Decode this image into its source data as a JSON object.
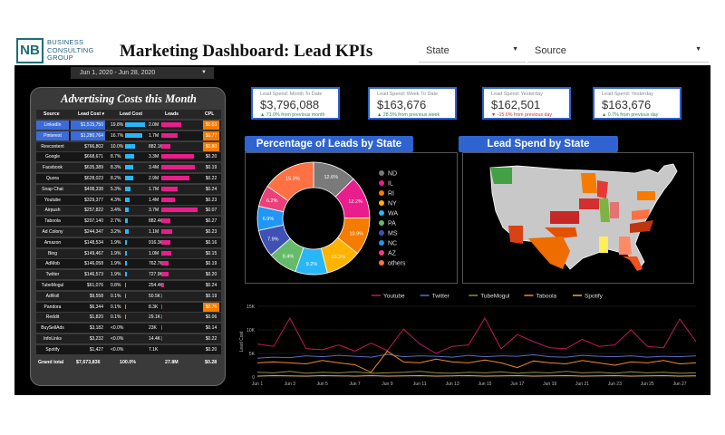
{
  "header": {
    "logo": "NB",
    "company": [
      "BUSINESS",
      "CONSULTING",
      "GROUP"
    ],
    "title": "Marketing Dashboard: Lead KPIs",
    "state_filter": "State",
    "source_filter": "Source",
    "date_range": "Jun 1, 2020 - Jun 28, 2020"
  },
  "ad_costs": {
    "title": "Advertising Costs this Month",
    "columns": [
      "Source",
      "Lead Cost",
      "Lead Cost",
      "Leads",
      "CPL"
    ],
    "rows": [
      {
        "source": "LinkedIn",
        "cost": "$1,515,750",
        "pct": "19.8%",
        "pct_value": 19.8,
        "leads": "2.0M",
        "leads_value": 2.0,
        "cpl": "$0.53",
        "cpl_color": "#f57c00",
        "highlight": true
      },
      {
        "source": "Pinterest",
        "cost": "$1,280,764",
        "pct": "16.7%",
        "pct_value": 16.7,
        "leads": "1.7M",
        "leads_value": 1.7,
        "cpl": "$0.77",
        "cpl_color": "#f57c00",
        "highlight": true
      },
      {
        "source": "Revcontent",
        "cost": "$766,802",
        "pct": "10.0%",
        "pct_value": 10.0,
        "leads": "882.1K",
        "leads_value": 0.882,
        "cpl": "$0.80",
        "cpl_color": "#f57c00",
        "highlight": false
      },
      {
        "source": "Google",
        "cost": "$668,671",
        "pct": "8.7%",
        "pct_value": 8.7,
        "leads": "3.3M",
        "leads_value": 3.3,
        "cpl": "$0.20",
        "cpl_color": "",
        "highlight": false
      },
      {
        "source": "Facebook",
        "cost": "$635,389",
        "pct": "8.3%",
        "pct_value": 8.3,
        "leads": "3.4M",
        "leads_value": 3.4,
        "cpl": "$0.19",
        "cpl_color": "",
        "highlight": false
      },
      {
        "source": "Quora",
        "cost": "$628,023",
        "pct": "8.2%",
        "pct_value": 8.2,
        "leads": "2.9M",
        "leads_value": 2.9,
        "cpl": "$0.22",
        "cpl_color": "",
        "highlight": false
      },
      {
        "source": "Snap Chat",
        "cost": "$408,338",
        "pct": "5.3%",
        "pct_value": 5.3,
        "leads": "1.7M",
        "leads_value": 1.7,
        "cpl": "$0.24",
        "cpl_color": "",
        "highlight": false
      },
      {
        "source": "Youtube",
        "cost": "$329,377",
        "pct": "4.3%",
        "pct_value": 4.3,
        "leads": "1.4M",
        "leads_value": 1.4,
        "cpl": "$0.23",
        "cpl_color": "",
        "highlight": false
      },
      {
        "source": "Airpush",
        "cost": "$257,822",
        "pct": "3.4%",
        "pct_value": 3.4,
        "leads": "3.7M",
        "leads_value": 3.7,
        "cpl": "$0.07",
        "cpl_color": "",
        "highlight": false
      },
      {
        "source": "Taboola",
        "cost": "$207,140",
        "pct": "2.7%",
        "pct_value": 2.7,
        "leads": "882.4K",
        "leads_value": 0.882,
        "cpl": "$0.27",
        "cpl_color": "",
        "highlight": false
      },
      {
        "source": "Ad Colony",
        "cost": "$244,347",
        "pct": "3.2%",
        "pct_value": 3.2,
        "leads": "1.1M",
        "leads_value": 1.1,
        "cpl": "$0.23",
        "cpl_color": "",
        "highlight": false
      },
      {
        "source": "Amazon",
        "cost": "$148,534",
        "pct": "1.9%",
        "pct_value": 1.9,
        "leads": "916.3K",
        "leads_value": 0.916,
        "cpl": "$0.16",
        "cpl_color": "",
        "highlight": false
      },
      {
        "source": "Bing",
        "cost": "$149,467",
        "pct": "1.9%",
        "pct_value": 1.9,
        "leads": "1.0M",
        "leads_value": 1.0,
        "cpl": "$0.15",
        "cpl_color": "",
        "highlight": false
      },
      {
        "source": "AdMob",
        "cost": "$146,058",
        "pct": "1.9%",
        "pct_value": 1.9,
        "leads": "762.7K",
        "leads_value": 0.763,
        "cpl": "$0.19",
        "cpl_color": "",
        "highlight": false
      },
      {
        "source": "Twitter",
        "cost": "$146,573",
        "pct": "1.9%",
        "pct_value": 1.9,
        "leads": "727.9K",
        "leads_value": 0.728,
        "cpl": "$0.20",
        "cpl_color": "",
        "highlight": false
      },
      {
        "source": "TubeMogul",
        "cost": "$61,076",
        "pct": "0.8%",
        "pct_value": 0.8,
        "leads": "254.4K",
        "leads_value": 0.254,
        "cpl": "$0.24",
        "cpl_color": "",
        "highlight": false
      },
      {
        "source": "AdRoll",
        "cost": "$9,558",
        "pct": "0.1%",
        "pct_value": 0.1,
        "leads": "50.5K",
        "leads_value": 0.05,
        "cpl": "$0.19",
        "cpl_color": "",
        "highlight": false
      },
      {
        "source": "Pandora",
        "cost": "$6,344",
        "pct": "0.1%",
        "pct_value": 0.1,
        "leads": "8.3K",
        "leads_value": 0.008,
        "cpl": "$0.76",
        "cpl_color": "#f57c00",
        "highlight": false
      },
      {
        "source": "Reddit",
        "cost": "$1,820",
        "pct": "0.1%",
        "pct_value": 0.1,
        "leads": "29.1K",
        "leads_value": 0.029,
        "cpl": "$0.06",
        "cpl_color": "",
        "highlight": false
      },
      {
        "source": "BuySellAds",
        "cost": "$3,182",
        "pct": "<0.0%",
        "pct_value": 0.0,
        "leads": "23K",
        "leads_value": 0.023,
        "cpl": "$0.14",
        "cpl_color": "",
        "highlight": false
      },
      {
        "source": "InfoLinks",
        "cost": "$3,232",
        "pct": "<0.0%",
        "pct_value": 0.0,
        "leads": "14.4K",
        "leads_value": 0.014,
        "cpl": "$0.22",
        "cpl_color": "",
        "highlight": false
      },
      {
        "source": "Spotify",
        "cost": "$1,427",
        "pct": "<0.0%",
        "pct_value": 0.0,
        "leads": "7.1K",
        "leads_value": 0.007,
        "cpl": "$0.20",
        "cpl_color": "",
        "highlight": false
      }
    ],
    "total": {
      "label": "Grand total",
      "cost": "$7,673,836",
      "pct": "100.0%",
      "leads": "27.8M",
      "cpl": "$0.28"
    }
  },
  "kpis": [
    {
      "label": "Lead Spend: Month To Date",
      "value": "$3,796,088",
      "change": "▲ 71.0% from previous month",
      "direction": "up"
    },
    {
      "label": "Lead Spend: Week To Date",
      "value": "$163,676",
      "change": "▲ 28.5% from previous week",
      "direction": "up"
    },
    {
      "label": "Lead Spend: Yesterday",
      "value": "$162,501",
      "change": "▼ -15.6% from previous day",
      "direction": "down"
    },
    {
      "label": "Lead Spend: Yesterday",
      "value": "$163,676",
      "change": "▲ 0.7% from previous day",
      "direction": "up"
    }
  ],
  "pie_section": {
    "title": "Percentage of Leads by State"
  },
  "map_section": {
    "title": "Lead Spend by State"
  },
  "chart_data": [
    {
      "type": "pie",
      "title": "Percentage of Leads by State",
      "donut": true,
      "slices": [
        {
          "label": "ND",
          "value": 12.6,
          "color": "#7a7a7a"
        },
        {
          "label": "IL",
          "value": 12.2,
          "color": "#e91e8c"
        },
        {
          "label": "RI",
          "value": 10.9,
          "color": "#f57c00"
        },
        {
          "label": "NY",
          "value": 10.3,
          "color": "#ffb300"
        },
        {
          "label": "WA",
          "value": 9.2,
          "color": "#29b6f6"
        },
        {
          "label": "PA",
          "value": 8.4,
          "color": "#66bb6a"
        },
        {
          "label": "MS",
          "value": 7.9,
          "color": "#3f51b5"
        },
        {
          "label": "NC",
          "value": 6.9,
          "color": "#2196f3"
        },
        {
          "label": "AZ",
          "value": 6.2,
          "color": "#ec407a"
        },
        {
          "label": "others",
          "value": 15.3,
          "color": "#ff7043"
        }
      ]
    },
    {
      "type": "line",
      "title": "",
      "ylabel": "Lead Cost",
      "ylim": [
        0,
        15000
      ],
      "y_ticks": [
        "0",
        "5K",
        "10K",
        "15K"
      ],
      "x": [
        "Jun 1",
        "Jun 2",
        "Jun 3",
        "Jun 4",
        "Jun 5",
        "Jun 6",
        "Jun 7",
        "Jun 8",
        "Jun 9",
        "Jun 10",
        "Jun 11",
        "Jun 12",
        "Jun 13",
        "Jun 14",
        "Jun 15",
        "Jun 16",
        "Jun 17",
        "Jun 18",
        "Jun 19",
        "Jun 20",
        "Jun 21",
        "Jun 22",
        "Jun 23",
        "Jun 24",
        "Jun 25",
        "Jun 26",
        "Jun 27",
        "Jun 28"
      ],
      "x_tick_labels": [
        "Jun 1",
        "Jun 3",
        "Jun 5",
        "Jun 7",
        "Jun 9",
        "Jun 11",
        "Jun 13",
        "Jun 15",
        "Jun 17",
        "Jun 19",
        "Jun 21",
        "Jun 23",
        "Jun 25",
        "Jun 27"
      ],
      "series": [
        {
          "name": "Youtube",
          "color": "#c2185b",
          "values": [
            7000,
            6500,
            12500,
            6000,
            5800,
            6800,
            5500,
            7200,
            5600,
            10200,
            7000,
            5000,
            6500,
            6800,
            12500,
            6000,
            9000,
            7500,
            6200,
            6000,
            8000,
            6500,
            6800,
            10000,
            6500,
            6200,
            12300,
            7500
          ]
        },
        {
          "name": "Twitter",
          "color": "#5c6bc0",
          "values": [
            4000,
            4200,
            4100,
            4500,
            4300,
            4600,
            4400,
            4200,
            4800,
            4300,
            4500,
            4400,
            4200,
            4600,
            4300,
            4500,
            4400,
            4700,
            4300,
            4200,
            4600,
            4400,
            4300,
            4500,
            4200,
            4400,
            4300,
            4500
          ]
        },
        {
          "name": "TubeMogul",
          "color": "#8d8f3a",
          "values": [
            1000,
            900,
            1200,
            800,
            1000,
            900,
            1100,
            800,
            900,
            1000,
            1200,
            900,
            800,
            1000,
            900,
            1100,
            800,
            1000,
            900,
            1200,
            900,
            1000,
            800,
            1100,
            900,
            1000,
            800,
            900
          ]
        },
        {
          "name": "Taboola",
          "color": "#ef8a2b",
          "values": [
            3000,
            3200,
            3000,
            2800,
            3500,
            3000,
            2600,
            1000,
            5500,
            3200,
            3000,
            3800,
            3200,
            3000,
            3600,
            3000,
            2000,
            3400,
            3000,
            2800,
            3500,
            3000,
            2500,
            3200,
            3000,
            3500,
            2800,
            3000
          ]
        },
        {
          "name": "Spotify",
          "color": "#e0a85a",
          "values": [
            200,
            300,
            250,
            200,
            300,
            250,
            200,
            300,
            200,
            250,
            300,
            200,
            250,
            300,
            200,
            250,
            300,
            200,
            250,
            300,
            200,
            250,
            300,
            200,
            250,
            300,
            200,
            250
          ]
        }
      ]
    }
  ]
}
